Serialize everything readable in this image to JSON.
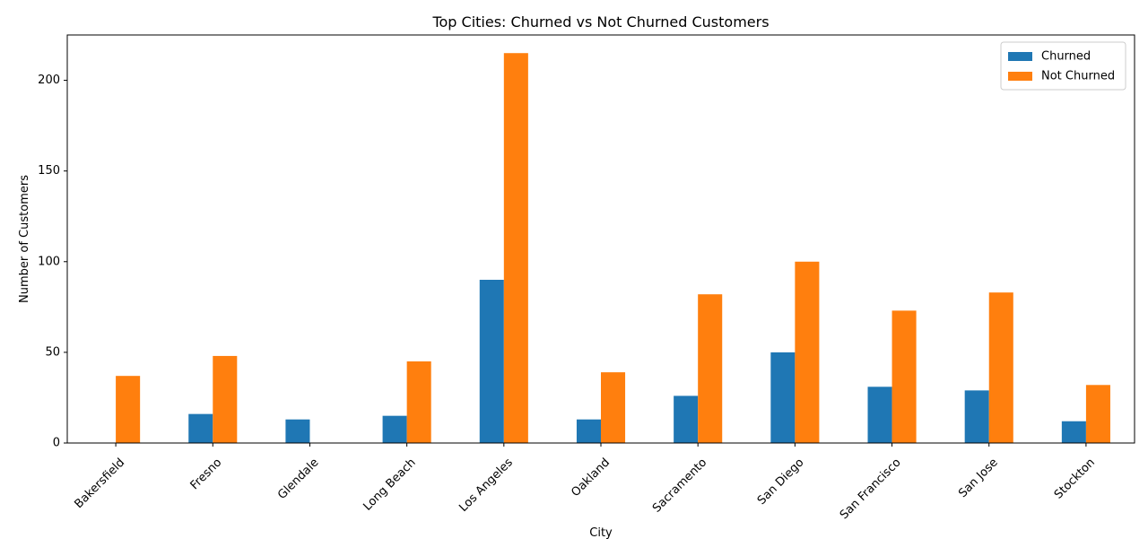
{
  "chart_data": {
    "type": "bar",
    "title": "Top Cities: Churned vs Not Churned Customers",
    "xlabel": "City",
    "ylabel": "Number of Customers",
    "ylim": [
      0,
      225
    ],
    "yticks": [
      0,
      50,
      100,
      150,
      200
    ],
    "grid": false,
    "legend_position": "top-right",
    "categories": [
      "Bakersfield",
      "Fresno",
      "Glendale",
      "Long Beach",
      "Los Angeles",
      "Oakland",
      "Sacramento",
      "San Diego",
      "San Francisco",
      "San Jose",
      "Stockton"
    ],
    "series": [
      {
        "name": "Churned",
        "color": "#1f77b4",
        "values": [
          0,
          16,
          13,
          15,
          90,
          13,
          26,
          50,
          31,
          29,
          12
        ]
      },
      {
        "name": "Not Churned",
        "color": "#ff7f0e",
        "values": [
          37,
          48,
          0,
          45,
          215,
          39,
          82,
          100,
          73,
          83,
          32
        ]
      }
    ]
  }
}
